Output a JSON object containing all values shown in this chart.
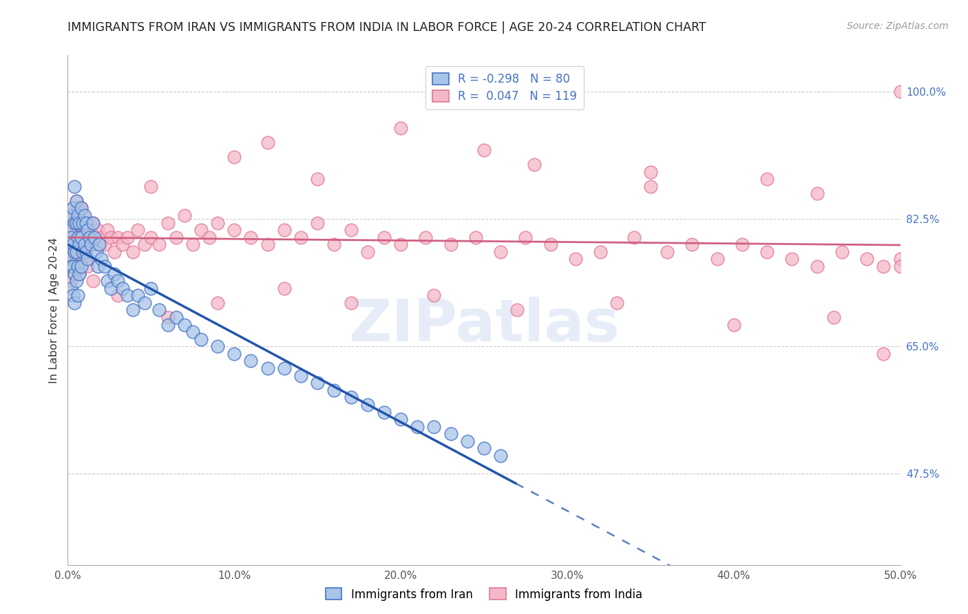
{
  "title": "IMMIGRANTS FROM IRAN VS IMMIGRANTS FROM INDIA IN LABOR FORCE | AGE 20-24 CORRELATION CHART",
  "source": "Source: ZipAtlas.com",
  "ylabel": "In Labor Force | Age 20-24",
  "xlim": [
    0.0,
    0.5
  ],
  "ylim": [
    0.35,
    1.05
  ],
  "xticklabels": [
    "0.0%",
    "10.0%",
    "20.0%",
    "30.0%",
    "40.0%",
    "50.0%"
  ],
  "xtick_vals": [
    0.0,
    0.1,
    0.2,
    0.3,
    0.4,
    0.5
  ],
  "yticks_right": [
    0.475,
    0.65,
    0.825,
    1.0
  ],
  "yticklabels_right": [
    "47.5%",
    "65.0%",
    "82.5%",
    "100.0%"
  ],
  "legend_iran": "Immigrants from Iran",
  "legend_india": "Immigrants from India",
  "R_iran": -0.298,
  "N_iran": 80,
  "R_india": 0.047,
  "N_india": 119,
  "color_iran_fill": "#a8c4e8",
  "color_india_fill": "#f5b8c8",
  "color_iran_edge": "#4472c4",
  "color_india_edge": "#e07898",
  "color_iran_line": "#2255aa",
  "color_india_line": "#d06080",
  "watermark": "ZIPatlas",
  "iran_x": [
    0.001,
    0.001,
    0.002,
    0.002,
    0.002,
    0.002,
    0.003,
    0.003,
    0.003,
    0.003,
    0.004,
    0.004,
    0.004,
    0.004,
    0.004,
    0.005,
    0.005,
    0.005,
    0.005,
    0.006,
    0.006,
    0.006,
    0.006,
    0.007,
    0.007,
    0.007,
    0.008,
    0.008,
    0.008,
    0.009,
    0.009,
    0.01,
    0.01,
    0.011,
    0.011,
    0.012,
    0.012,
    0.013,
    0.014,
    0.015,
    0.016,
    0.017,
    0.018,
    0.019,
    0.02,
    0.022,
    0.024,
    0.026,
    0.028,
    0.03,
    0.033,
    0.036,
    0.039,
    0.042,
    0.046,
    0.05,
    0.055,
    0.06,
    0.065,
    0.07,
    0.075,
    0.08,
    0.09,
    0.1,
    0.11,
    0.12,
    0.13,
    0.14,
    0.15,
    0.16,
    0.17,
    0.18,
    0.19,
    0.2,
    0.21,
    0.22,
    0.23,
    0.24,
    0.25,
    0.26
  ],
  "iran_y": [
    0.81,
    0.77,
    0.8,
    0.83,
    0.76,
    0.73,
    0.84,
    0.79,
    0.76,
    0.72,
    0.87,
    0.82,
    0.78,
    0.75,
    0.71,
    0.85,
    0.82,
    0.78,
    0.74,
    0.83,
    0.8,
    0.76,
    0.72,
    0.82,
    0.79,
    0.75,
    0.84,
    0.8,
    0.76,
    0.82,
    0.78,
    0.83,
    0.79,
    0.82,
    0.78,
    0.81,
    0.77,
    0.8,
    0.79,
    0.82,
    0.8,
    0.78,
    0.76,
    0.79,
    0.77,
    0.76,
    0.74,
    0.73,
    0.75,
    0.74,
    0.73,
    0.72,
    0.7,
    0.72,
    0.71,
    0.73,
    0.7,
    0.68,
    0.69,
    0.68,
    0.67,
    0.66,
    0.65,
    0.64,
    0.63,
    0.62,
    0.62,
    0.61,
    0.6,
    0.59,
    0.58,
    0.57,
    0.56,
    0.55,
    0.54,
    0.54,
    0.53,
    0.52,
    0.51,
    0.5
  ],
  "india_x": [
    0.001,
    0.001,
    0.002,
    0.002,
    0.002,
    0.003,
    0.003,
    0.003,
    0.004,
    0.004,
    0.004,
    0.005,
    0.005,
    0.005,
    0.006,
    0.006,
    0.006,
    0.007,
    0.007,
    0.007,
    0.008,
    0.008,
    0.009,
    0.009,
    0.01,
    0.01,
    0.011,
    0.011,
    0.012,
    0.012,
    0.013,
    0.014,
    0.015,
    0.016,
    0.017,
    0.018,
    0.019,
    0.02,
    0.022,
    0.024,
    0.026,
    0.028,
    0.03,
    0.033,
    0.036,
    0.039,
    0.042,
    0.046,
    0.05,
    0.055,
    0.06,
    0.065,
    0.07,
    0.075,
    0.08,
    0.085,
    0.09,
    0.1,
    0.11,
    0.12,
    0.13,
    0.14,
    0.15,
    0.16,
    0.17,
    0.18,
    0.19,
    0.2,
    0.215,
    0.23,
    0.245,
    0.26,
    0.275,
    0.29,
    0.305,
    0.32,
    0.34,
    0.36,
    0.375,
    0.39,
    0.405,
    0.42,
    0.435,
    0.45,
    0.465,
    0.48,
    0.49,
    0.5,
    0.12,
    0.2,
    0.28,
    0.35,
    0.42,
    0.05,
    0.1,
    0.15,
    0.25,
    0.35,
    0.45,
    0.015,
    0.03,
    0.06,
    0.09,
    0.13,
    0.17,
    0.22,
    0.27,
    0.33,
    0.4,
    0.46,
    0.5,
    0.5,
    0.49
  ],
  "india_y": [
    0.82,
    0.78,
    0.81,
    0.77,
    0.74,
    0.84,
    0.8,
    0.76,
    0.83,
    0.79,
    0.75,
    0.85,
    0.81,
    0.77,
    0.84,
    0.8,
    0.76,
    0.83,
    0.79,
    0.75,
    0.84,
    0.8,
    0.83,
    0.79,
    0.82,
    0.78,
    0.81,
    0.77,
    0.8,
    0.76,
    0.82,
    0.81,
    0.82,
    0.8,
    0.79,
    0.81,
    0.79,
    0.8,
    0.79,
    0.81,
    0.8,
    0.78,
    0.8,
    0.79,
    0.8,
    0.78,
    0.81,
    0.79,
    0.8,
    0.79,
    0.82,
    0.8,
    0.83,
    0.79,
    0.81,
    0.8,
    0.82,
    0.81,
    0.8,
    0.79,
    0.81,
    0.8,
    0.82,
    0.79,
    0.81,
    0.78,
    0.8,
    0.79,
    0.8,
    0.79,
    0.8,
    0.78,
    0.8,
    0.79,
    0.77,
    0.78,
    0.8,
    0.78,
    0.79,
    0.77,
    0.79,
    0.78,
    0.77,
    0.76,
    0.78,
    0.77,
    0.76,
    0.77,
    0.93,
    0.95,
    0.9,
    0.89,
    0.88,
    0.87,
    0.91,
    0.88,
    0.92,
    0.87,
    0.86,
    0.74,
    0.72,
    0.69,
    0.71,
    0.73,
    0.71,
    0.72,
    0.7,
    0.71,
    0.68,
    0.69,
    0.76,
    1.0,
    0.64
  ]
}
